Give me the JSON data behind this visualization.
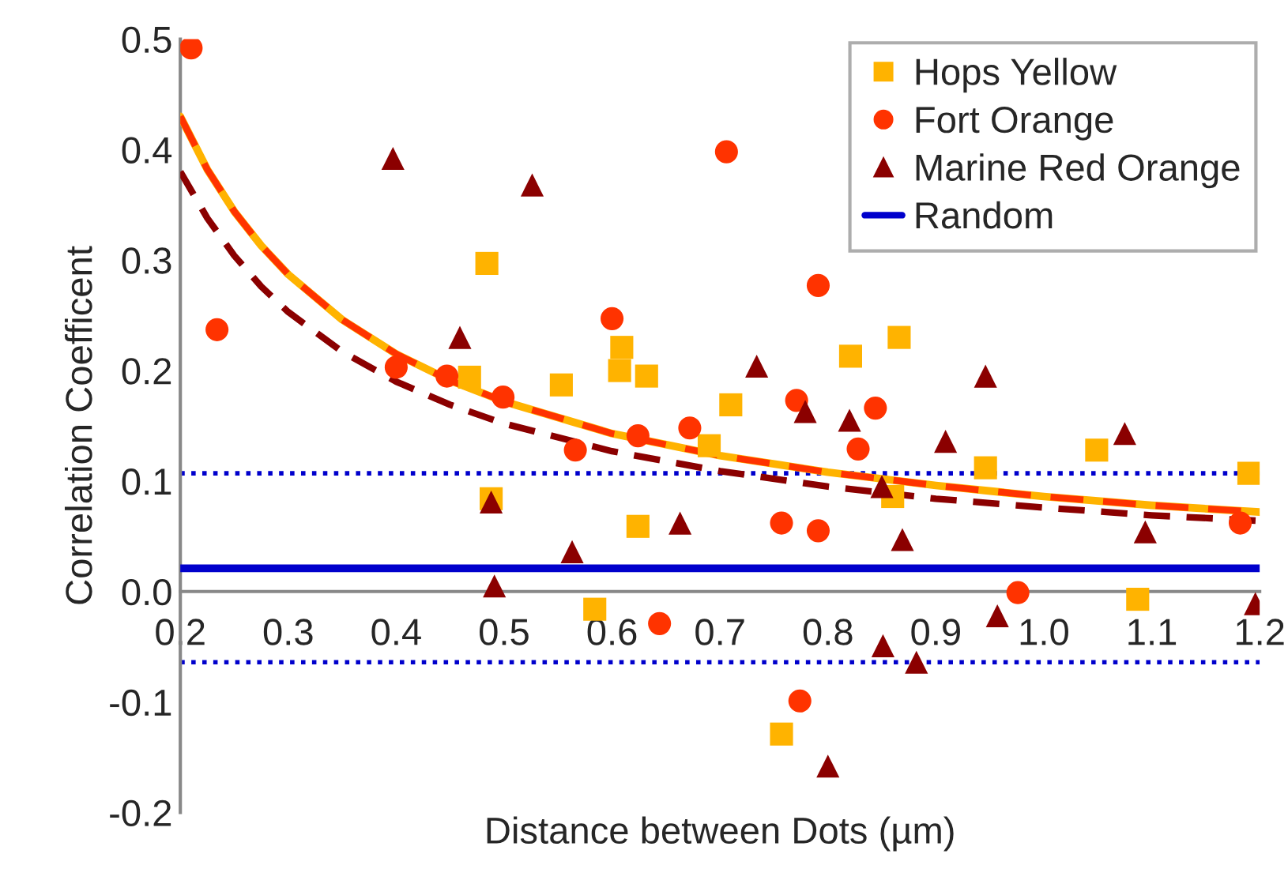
{
  "chart_data": {
    "type": "scatter",
    "xlabel": "Distance between Dots (µm)",
    "ylabel": "Correlation Coefficent",
    "xlim": [
      0.2,
      1.2
    ],
    "xticks": [
      0.2,
      0.3,
      0.4,
      0.5,
      0.6,
      0.7,
      0.8,
      0.9,
      {
        "value": 1,
        "label": "1.0"
      },
      1.1,
      1.2
    ],
    "ylim": [
      -0.2,
      0.5
    ],
    "yticks": [
      -0.2,
      -0.1,
      {
        "value": 0,
        "label": "0.0"
      },
      0.1,
      0.2,
      0.3,
      0.4,
      0.5
    ],
    "grid": false,
    "legend": "top right",
    "ref_lines": [
      {
        "axis": "y",
        "value": 0.107,
        "label": null,
        "color": "#0000cc",
        "line_style": "dotted"
      },
      {
        "axis": "y",
        "value": -0.064,
        "label": null,
        "color": "#0000cc",
        "line_style": "dotted"
      }
    ],
    "series": [
      {
        "name": "Hops Yellow",
        "marker": "square",
        "color": "#ffb300",
        "x": [
          0.484,
          0.468,
          0.488,
          0.553,
          0.609,
          0.607,
          0.632,
          0.624,
          0.584,
          0.69,
          0.71,
          0.821,
          0.866,
          0.86,
          0.946,
          1.049,
          1.19,
          1.087,
          0.757
        ],
        "values": [
          0.297,
          0.194,
          0.084,
          0.187,
          0.221,
          0.2,
          0.195,
          0.059,
          -0.016,
          0.132,
          0.169,
          0.213,
          0.23,
          0.086,
          0.112,
          0.128,
          0.107,
          -0.007,
          -0.129
        ]
      },
      {
        "name": "Fort Orange",
        "marker": "circle",
        "color": "#ff3300",
        "x": [
          0.21,
          0.234,
          0.4,
          0.447,
          0.499,
          0.6,
          0.706,
          0.566,
          0.624,
          0.672,
          0.644,
          0.791,
          0.771,
          0.844,
          0.828,
          0.757,
          0.791,
          0.976,
          1.182,
          0.774
        ],
        "values": [
          0.492,
          0.237,
          0.203,
          0.195,
          0.176,
          0.247,
          0.398,
          0.128,
          0.141,
          0.148,
          -0.029,
          0.277,
          0.173,
          0.166,
          0.129,
          0.062,
          0.055,
          -0.001,
          0.062,
          -0.099
        ]
      },
      {
        "name": "Marine Red Orange",
        "marker": "triangle",
        "color": "#8b0000",
        "x": [
          0.397,
          0.526,
          0.459,
          0.488,
          0.563,
          0.491,
          0.663,
          0.734,
          0.946,
          0.779,
          0.82,
          0.909,
          1.075,
          0.85,
          0.869,
          1.094,
          0.957,
          1.196,
          0.851,
          0.882,
          0.8
        ],
        "values": [
          0.392,
          0.368,
          0.23,
          0.081,
          0.036,
          0.005,
          0.062,
          0.204,
          0.195,
          0.163,
          0.155,
          0.136,
          0.143,
          0.095,
          0.047,
          0.054,
          -0.022,
          -0.011,
          -0.049,
          -0.064,
          -0.158
        ]
      },
      {
        "name": "Random",
        "type": "line",
        "marker": "none",
        "line_style": "solid",
        "color": "#0000cc",
        "x": [
          0.2,
          1.2
        ],
        "values": [
          0.021,
          0.021
        ]
      },
      {
        "type": "line",
        "marker": "none",
        "line_style": "solid",
        "color": "#ffb300",
        "x": [
          0.2,
          0.225,
          0.25,
          0.275,
          0.3,
          0.35,
          0.4,
          0.45,
          0.5,
          0.6,
          0.7,
          0.8,
          0.9,
          1.0,
          1.1,
          1.2
        ],
        "values": [
          0.43,
          0.382,
          0.344,
          0.313,
          0.287,
          0.246,
          0.215,
          0.191,
          0.172,
          0.143,
          0.123,
          0.108,
          0.096,
          0.086,
          0.078,
          0.072
        ]
      },
      {
        "type": "line",
        "marker": "none",
        "line_style": "dashed",
        "color": "#ff3300",
        "x": [
          0.2,
          0.225,
          0.25,
          0.275,
          0.3,
          0.35,
          0.4,
          0.45,
          0.5,
          0.6,
          0.7,
          0.8,
          0.9,
          1.0,
          1.1,
          1.2
        ],
        "values": [
          0.43,
          0.382,
          0.344,
          0.313,
          0.287,
          0.246,
          0.215,
          0.191,
          0.172,
          0.143,
          0.123,
          0.108,
          0.096,
          0.086,
          0.078,
          0.072
        ]
      },
      {
        "type": "line",
        "marker": "none",
        "line_style": "dashed",
        "color": "#8b0000",
        "x": [
          0.2,
          0.225,
          0.25,
          0.275,
          0.3,
          0.35,
          0.4,
          0.45,
          0.5,
          0.6,
          0.7,
          0.8,
          0.9,
          1.0,
          1.1,
          1.2
        ],
        "values": [
          0.38,
          0.338,
          0.304,
          0.276,
          0.253,
          0.217,
          0.19,
          0.169,
          0.152,
          0.127,
          0.109,
          0.095,
          0.084,
          0.076,
          0.069,
          0.064
        ]
      }
    ]
  }
}
